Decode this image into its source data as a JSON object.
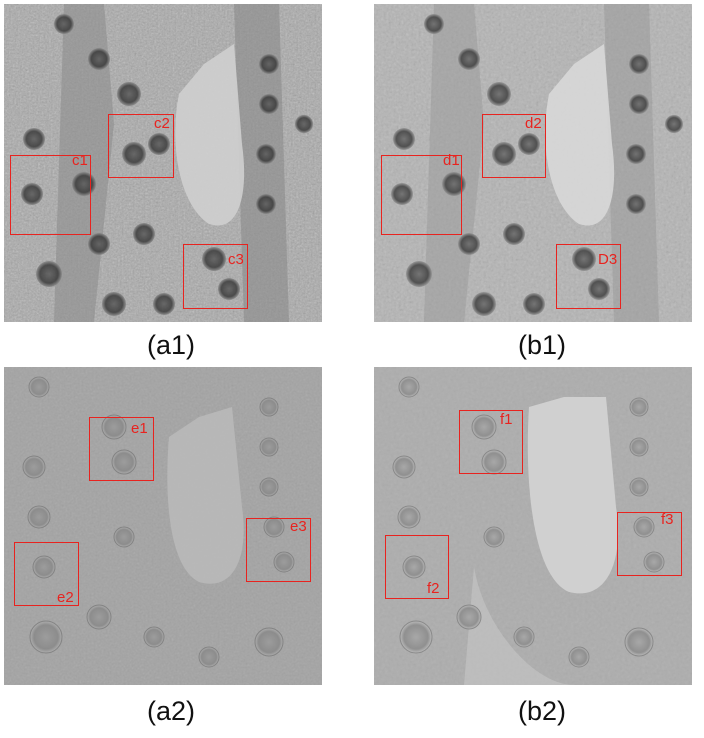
{
  "panels": {
    "a1": {
      "caption": "(a1)",
      "boxes": [
        "c1",
        "c2",
        "c3"
      ]
    },
    "b1": {
      "caption": "(b1)",
      "boxes": [
        "d1",
        "d2",
        "D3"
      ]
    },
    "a2": {
      "caption": "(a2)",
      "boxes": [
        "e1",
        "e2",
        "e3"
      ]
    },
    "b2": {
      "caption": "(b2)",
      "boxes": [
        "f1",
        "f2",
        "f3"
      ]
    }
  },
  "colors": {
    "box": "#e8231f",
    "caption": "#111111"
  }
}
